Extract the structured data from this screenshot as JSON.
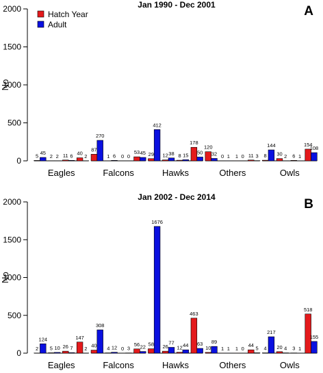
{
  "legend": {
    "placement": "top-left",
    "items": [
      {
        "label": "Hatch Year",
        "color": "#e41a1c"
      },
      {
        "label": "Adult",
        "color": "#0a10e0"
      }
    ]
  },
  "chart_data": [
    {
      "type": "bar",
      "panel_letter": "A",
      "title": "Jan 1990 - Dec 2001",
      "ylabel": "No",
      "xlabel": "",
      "ylim": [
        0,
        2000
      ],
      "yticks": [
        0,
        500,
        1000,
        1500,
        2000
      ],
      "grid": false,
      "categories": [
        "Eagles",
        "Falcons",
        "Hawks",
        "Others",
        "Owls"
      ],
      "series": [
        {
          "name": "Hatch Year",
          "values": [
            [
              5,
              2,
              11,
              40
            ],
            [
              87,
              1,
              0,
              53
            ],
            [
              29,
              12,
              8,
              178
            ],
            [
              120,
              0,
              1,
              11
            ],
            [
              8,
              30,
              6,
              154
            ]
          ]
        },
        {
          "name": "Adult",
          "values": [
            [
              45,
              2,
              6,
              2
            ],
            [
              270,
              6,
              0,
              45
            ],
            [
              412,
              38,
              15,
              50
            ],
            [
              32,
              1,
              0,
              3
            ],
            [
              144,
              2,
              1,
              108
            ]
          ]
        }
      ]
    },
    {
      "type": "bar",
      "panel_letter": "B",
      "title": "Jan 2002 - Dec 2014",
      "ylabel": "No",
      "xlabel": "",
      "ylim": [
        0,
        2000
      ],
      "yticks": [
        0,
        500,
        1000,
        1500,
        2000
      ],
      "grid": false,
      "categories": [
        "Eagles",
        "Falcons",
        "Hawks",
        "Others",
        "Owls"
      ],
      "series": [
        {
          "name": "Hatch Year",
          "values": [
            [
              2,
              5,
              26,
              147
            ],
            [
              40,
              4,
              0,
              56
            ],
            [
              58,
              26,
              12,
              463
            ],
            [
              10,
              1,
              1,
              44
            ],
            [
              4,
              20,
              3,
              518
            ]
          ]
        },
        {
          "name": "Adult",
          "values": [
            [
              124,
              10,
              7,
              2
            ],
            [
              308,
              12,
              3,
              22
            ],
            [
              1676,
              77,
              44,
              63
            ],
            [
              89,
              1,
              0,
              5
            ],
            [
              217,
              4,
              1,
              155
            ]
          ]
        }
      ]
    }
  ]
}
